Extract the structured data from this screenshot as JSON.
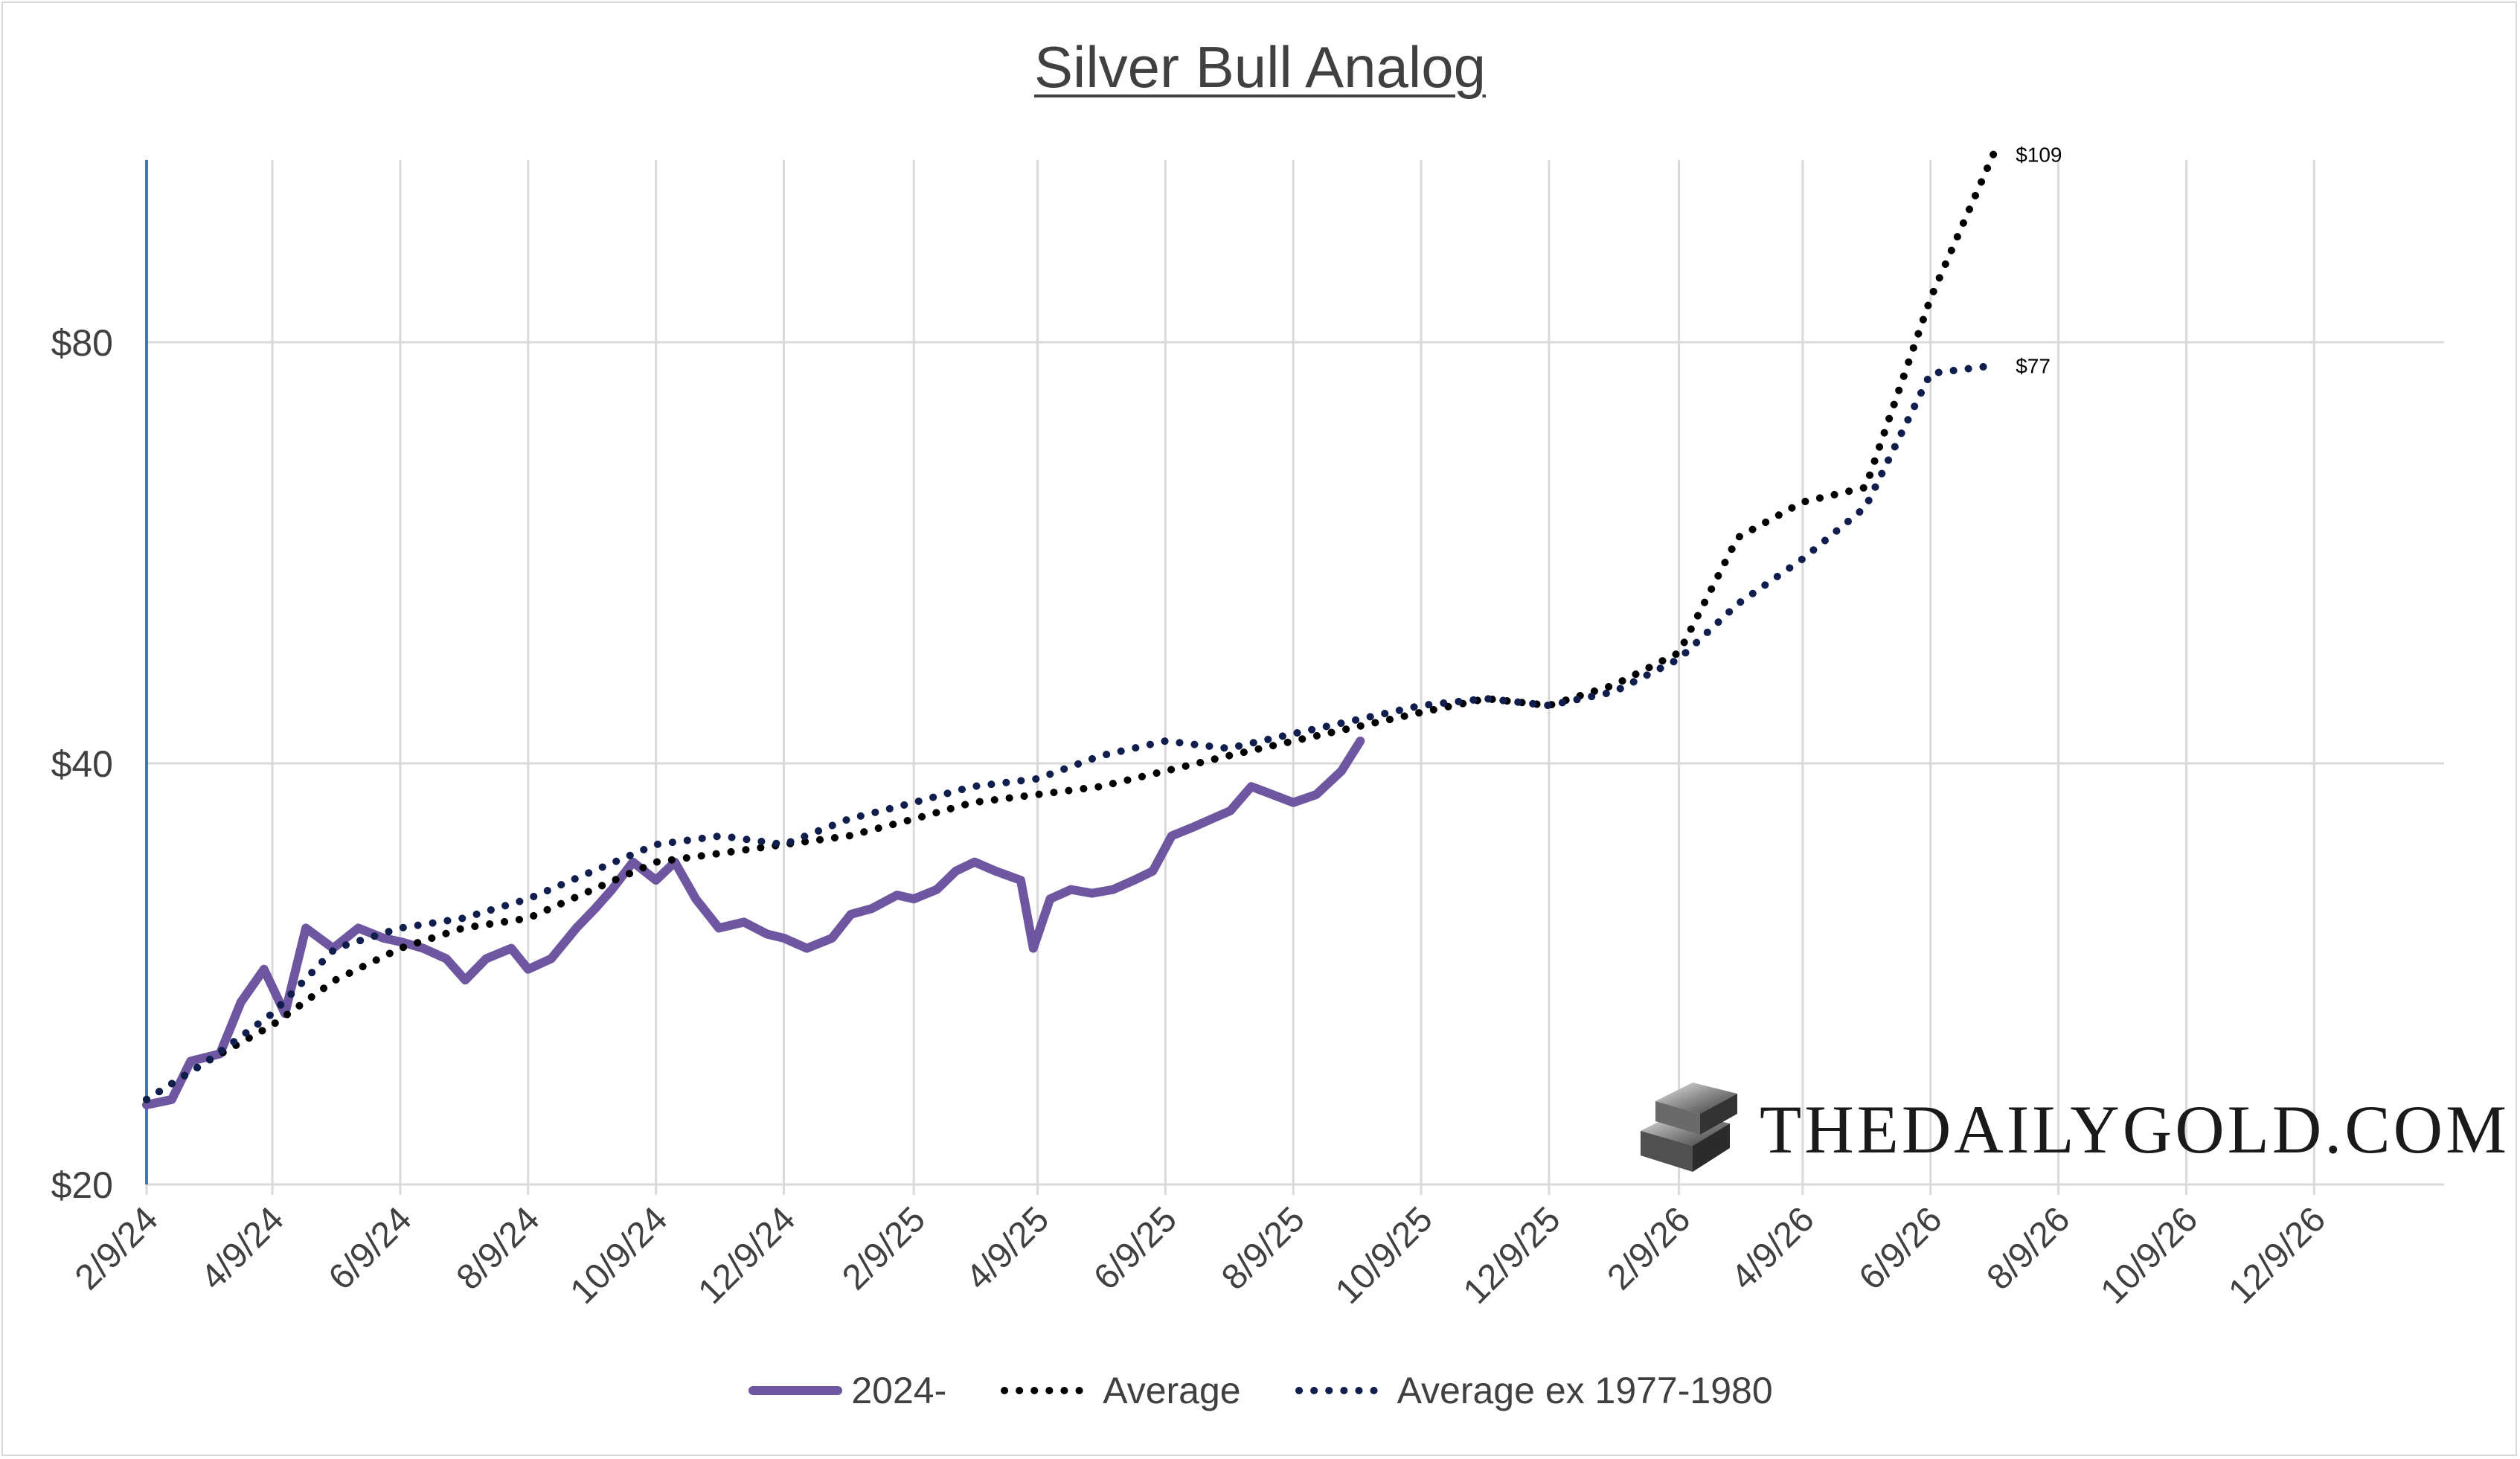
{
  "chart_data": {
    "type": "line",
    "title": "Silver Bull Analog",
    "xlabel": "",
    "ylabel": "",
    "x_tick_labels": [
      "2/9/24",
      "4/9/24",
      "6/9/24",
      "8/9/24",
      "10/9/24",
      "12/9/24",
      "2/9/25",
      "4/9/25",
      "6/9/25",
      "8/9/25",
      "10/9/25",
      "12/9/25",
      "2/9/26",
      "4/9/26",
      "6/9/26",
      "8/9/26",
      "10/9/26",
      "12/9/26"
    ],
    "y_tick_labels": [
      "$20",
      "$40",
      "$80"
    ],
    "y_ticks": [
      20,
      40,
      80
    ],
    "y_scale": "log",
    "ylim": [
      20,
      108
    ],
    "xlim": [
      "2024-02-09",
      "2027-02-09"
    ],
    "grid": true,
    "legend_position": "bottom",
    "series": [
      {
        "name": "2024-",
        "style": "solid",
        "color": "#6e57a0",
        "x": [
          "2024-02-09",
          "2024-02-21",
          "2024-03-01",
          "2024-03-15",
          "2024-03-25",
          "2024-04-05",
          "2024-04-15",
          "2024-04-25",
          "2024-05-08",
          "2024-05-20",
          "2024-06-01",
          "2024-06-10",
          "2024-06-20",
          "2024-07-01",
          "2024-07-10",
          "2024-07-20",
          "2024-08-01",
          "2024-08-09",
          "2024-08-20",
          "2024-09-01",
          "2024-09-10",
          "2024-09-18",
          "2024-09-28",
          "2024-10-09",
          "2024-10-18",
          "2024-10-28",
          "2024-11-08",
          "2024-11-20",
          "2024-12-01",
          "2024-12-09",
          "2024-12-20",
          "2025-01-01",
          "2025-01-10",
          "2025-01-20",
          "2025-02-01",
          "2025-02-09",
          "2025-02-20",
          "2025-03-01",
          "2025-03-10",
          "2025-03-20",
          "2025-04-01",
          "2025-04-07",
          "2025-04-15",
          "2025-04-25",
          "2025-05-05",
          "2025-05-15",
          "2025-05-25",
          "2025-06-03",
          "2025-06-12",
          "2025-06-22",
          "2025-07-01",
          "2025-07-10",
          "2025-07-20",
          "2025-07-30",
          "2025-08-09",
          "2025-08-20",
          "2025-09-01",
          "2025-09-10"
        ],
        "values": [
          22.8,
          23.0,
          24.5,
          24.8,
          27.0,
          28.5,
          26.5,
          30.5,
          29.5,
          30.5,
          30.0,
          29.8,
          29.5,
          29.0,
          28.0,
          29.0,
          29.5,
          28.5,
          29.0,
          30.5,
          31.5,
          32.5,
          34.0,
          33.0,
          34.0,
          32.0,
          30.5,
          30.8,
          30.2,
          30.0,
          29.5,
          30.0,
          31.2,
          31.5,
          32.2,
          32.0,
          32.5,
          33.5,
          34.0,
          33.5,
          33.0,
          29.5,
          32.0,
          32.5,
          32.3,
          32.5,
          33.0,
          33.5,
          35.5,
          36.0,
          36.5,
          37.0,
          38.5,
          38.0,
          37.5,
          38.0,
          39.5,
          41.5
        ]
      },
      {
        "name": "Average",
        "style": "dotted",
        "color": "#000000",
        "x": [
          "2024-02-09",
          "2024-03-09",
          "2024-04-09",
          "2024-05-09",
          "2024-06-09",
          "2024-07-09",
          "2024-08-09",
          "2024-09-09",
          "2024-10-09",
          "2024-11-09",
          "2024-12-09",
          "2025-01-09",
          "2025-02-09",
          "2025-03-09",
          "2025-04-09",
          "2025-05-09",
          "2025-06-09",
          "2025-07-09",
          "2025-08-09",
          "2025-09-09",
          "2025-10-09",
          "2025-11-09",
          "2025-12-09",
          "2026-01-09",
          "2026-02-09",
          "2026-03-09",
          "2026-04-09",
          "2026-05-09",
          "2026-06-09",
          "2026-07-09"
        ],
        "values": [
          23.0,
          24.5,
          26.0,
          28.0,
          29.5,
          30.5,
          31.0,
          32.5,
          34.0,
          34.5,
          35.0,
          35.5,
          36.5,
          37.5,
          38.0,
          38.5,
          39.5,
          40.5,
          41.5,
          42.5,
          43.5,
          44.5,
          44.0,
          45.5,
          48.0,
          58.0,
          61.5,
          63.0,
          86.0,
          109
        ]
      },
      {
        "name": "Average ex 1977-1980",
        "style": "dotted",
        "color": "#0f1e4d",
        "x": [
          "2024-02-09",
          "2024-03-09",
          "2024-04-09",
          "2024-05-09",
          "2024-06-09",
          "2024-07-09",
          "2024-08-09",
          "2024-09-09",
          "2024-10-09",
          "2024-11-09",
          "2024-12-09",
          "2025-01-09",
          "2025-02-09",
          "2025-03-09",
          "2025-04-09",
          "2025-05-09",
          "2025-06-09",
          "2025-07-09",
          "2025-08-09",
          "2025-09-09",
          "2025-10-09",
          "2025-11-09",
          "2025-12-09",
          "2026-01-09",
          "2026-02-09",
          "2026-03-09",
          "2026-04-09",
          "2026-05-09",
          "2026-06-09",
          "2026-07-09"
        ],
        "values": [
          23.0,
          24.5,
          26.5,
          29.5,
          30.5,
          31.0,
          32.0,
          33.5,
          35.0,
          35.5,
          35.0,
          36.5,
          37.5,
          38.5,
          39.0,
          40.5,
          41.5,
          41.0,
          42.0,
          43.0,
          44.0,
          44.5,
          44.0,
          45.0,
          47.5,
          52.0,
          56.0,
          61.0,
          76.0,
          77
        ]
      }
    ],
    "end_labels": [
      {
        "series": "Average",
        "text": "$109"
      },
      {
        "series": "Average ex 1977-1980",
        "text": "$77"
      }
    ]
  },
  "legend": {
    "items": [
      {
        "label": "2024-",
        "style": "solid",
        "color": "#6e57a0"
      },
      {
        "label": "Average",
        "style": "dotted",
        "color": "#000000"
      },
      {
        "label": "Average ex 1977-1980",
        "style": "dotted",
        "color": "#0f1e4d"
      }
    ]
  },
  "watermark": {
    "text": "THEDAILYGOLD.COM",
    "icon": "gold-bars-icon"
  },
  "colors": {
    "axis_left": "#4472c4",
    "grid": "#d9d9d9",
    "text": "#404040"
  }
}
